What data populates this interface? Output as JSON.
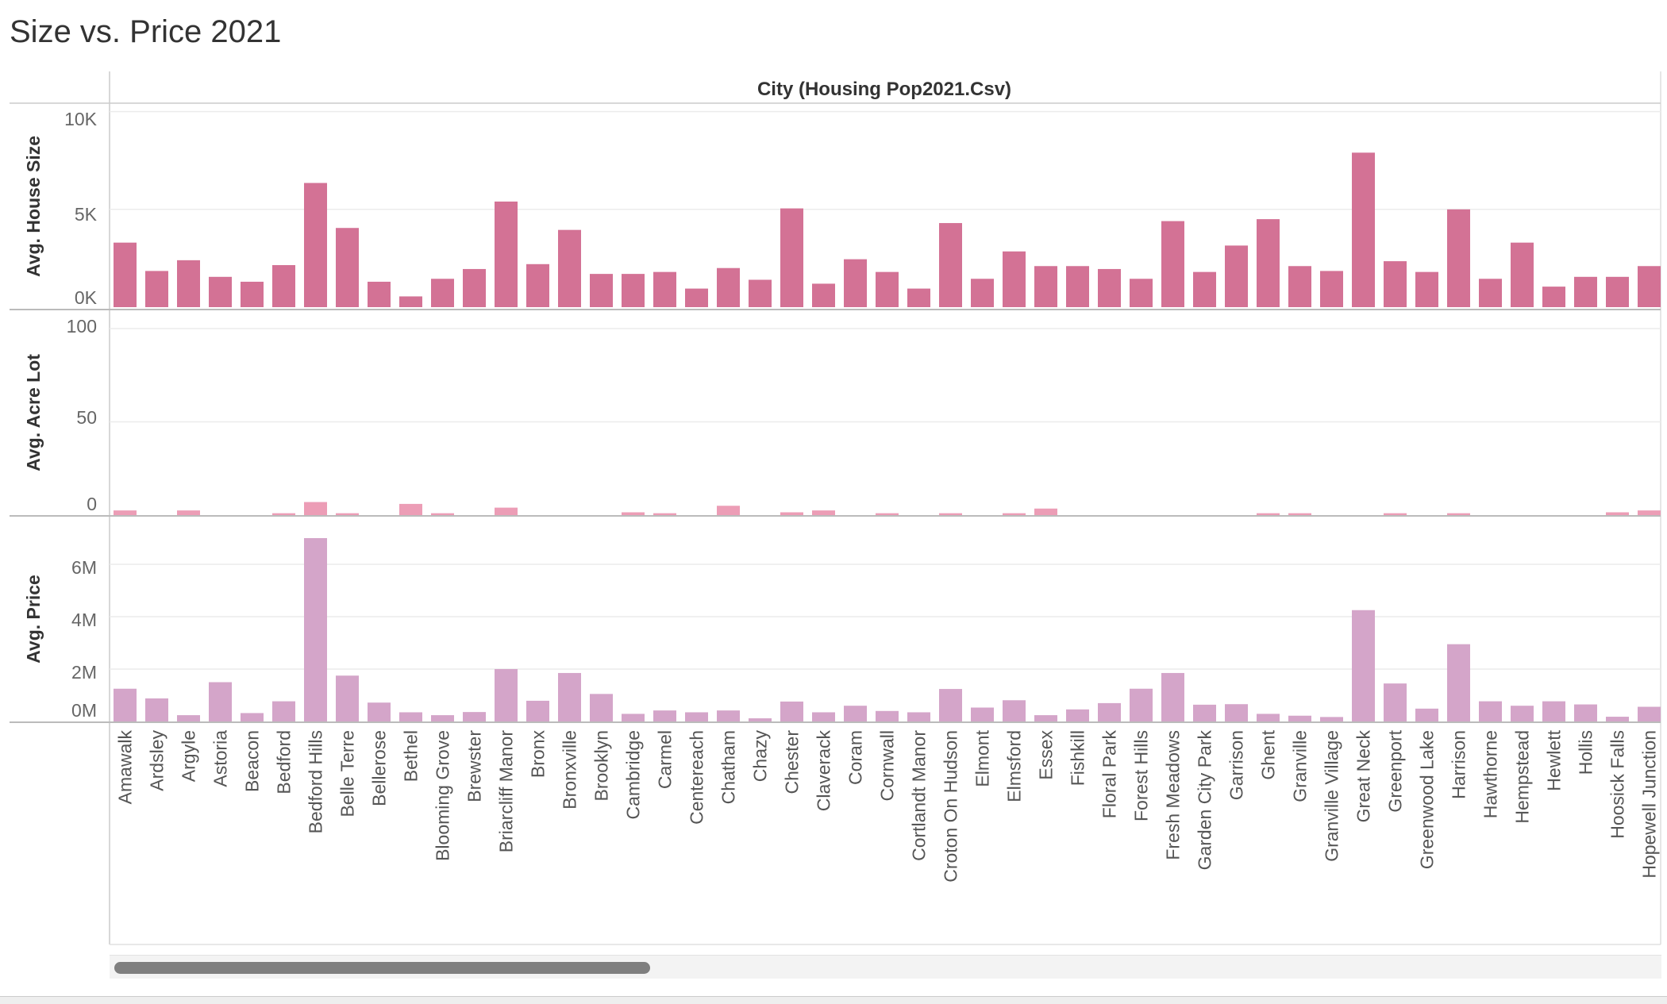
{
  "title": "Size vs. Price 2021",
  "chart_data": {
    "type": "bar",
    "header": "City (Housing Pop2021.Csv)",
    "categories": [
      "Amawalk",
      "Ardsley",
      "Argyle",
      "Astoria",
      "Beacon",
      "Bedford",
      "Bedford Hills",
      "Belle Terre",
      "Bellerose",
      "Bethel",
      "Blooming Grove",
      "Brewster",
      "Briarcliff Manor",
      "Bronx",
      "Bronxville",
      "Brooklyn",
      "Cambridge",
      "Carmel",
      "Centereach",
      "Chatham",
      "Chazy",
      "Chester",
      "Claverack",
      "Coram",
      "Cornwall",
      "Cortlandt Manor",
      "Croton On Hudson",
      "Elmont",
      "Elmsford",
      "Essex",
      "Fishkill",
      "Floral Park",
      "Forest Hills",
      "Fresh Meadows",
      "Garden City Park",
      "Garrison",
      "Ghent",
      "Granville",
      "Granville Village",
      "Great Neck",
      "Greenport",
      "Greenwood Lake",
      "Harrison",
      "Hawthorne",
      "Hempstead",
      "Hewlett",
      "Hollis",
      "Hoosick Falls",
      "Hopewell Junction"
    ],
    "panels": [
      {
        "ylabel": "Avg. House Size",
        "color": "#d37295",
        "ticks": [
          "10K",
          "5K",
          "0K"
        ],
        "values": [
          3300,
          1850,
          2400,
          1550,
          1300,
          2150,
          6350,
          4050,
          1300,
          550,
          1450,
          1950,
          5400,
          2200,
          3950,
          1700,
          1700,
          1800,
          950,
          2000,
          1400,
          5050,
          1200,
          2450,
          1800,
          950,
          4300,
          1450,
          2850,
          2100,
          2100,
          1950,
          1450,
          4400,
          1800,
          3150,
          4500,
          2100,
          1850,
          7900,
          2350,
          1800,
          5000,
          1450,
          3300,
          1050,
          1550,
          1550,
          2100
        ]
      },
      {
        "ylabel": "Avg. Acre Lot",
        "color": "#ec9db6",
        "ticks": [
          "100",
          "50",
          "0"
        ],
        "values": [
          2.5,
          0,
          2.5,
          0,
          0,
          1,
          7,
          1,
          0,
          6,
          1,
          0,
          4,
          0,
          0,
          0,
          1.5,
          1,
          0,
          5,
          0,
          1.5,
          2.5,
          0,
          1,
          0,
          1,
          0,
          1,
          3.5,
          0,
          0,
          0,
          0,
          0,
          0,
          1,
          1,
          0,
          0,
          1,
          0,
          1,
          0,
          0,
          0,
          0,
          1.5,
          2.5
        ]
      },
      {
        "ylabel": "Avg. Price",
        "color": "#d4a5c9",
        "ticks": [
          "6M",
          "4M",
          "2M",
          "0M"
        ],
        "values": [
          1250000,
          880000,
          240000,
          1500000,
          320000,
          770000,
          7000000,
          1750000,
          720000,
          350000,
          240000,
          360000,
          2000000,
          790000,
          1850000,
          1050000,
          290000,
          420000,
          350000,
          420000,
          120000,
          760000,
          350000,
          600000,
          400000,
          350000,
          1240000,
          530000,
          810000,
          240000,
          460000,
          700000,
          1250000,
          1850000,
          640000,
          660000,
          290000,
          220000,
          170000,
          4250000,
          1450000,
          490000,
          2950000,
          770000,
          600000,
          770000,
          650000,
          180000,
          560000
        ]
      }
    ]
  }
}
